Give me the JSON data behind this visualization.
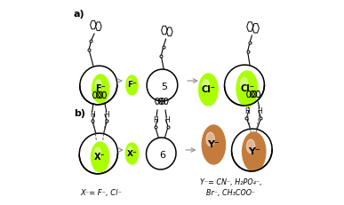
{
  "green_bright": "#aaff00",
  "green_mid": "#88ee00",
  "brown_light": "#c47c3c",
  "brown_mid": "#a05a20",
  "label_a": "a)",
  "label_b": "b)",
  "label_5": "5",
  "label_6": "6",
  "text_F": "F⁻",
  "text_Cl": "Cl⁻",
  "text_X": "X⁻",
  "text_Y": "Y⁻",
  "text_xeq": "X⁻= F⁻, Cl⁻",
  "text_yeq": "Y⁻= CN⁻, H₂PO₄⁻,\nBr⁻, CH₃COO⁻",
  "arrow_color": "#999999",
  "black": "#000000"
}
